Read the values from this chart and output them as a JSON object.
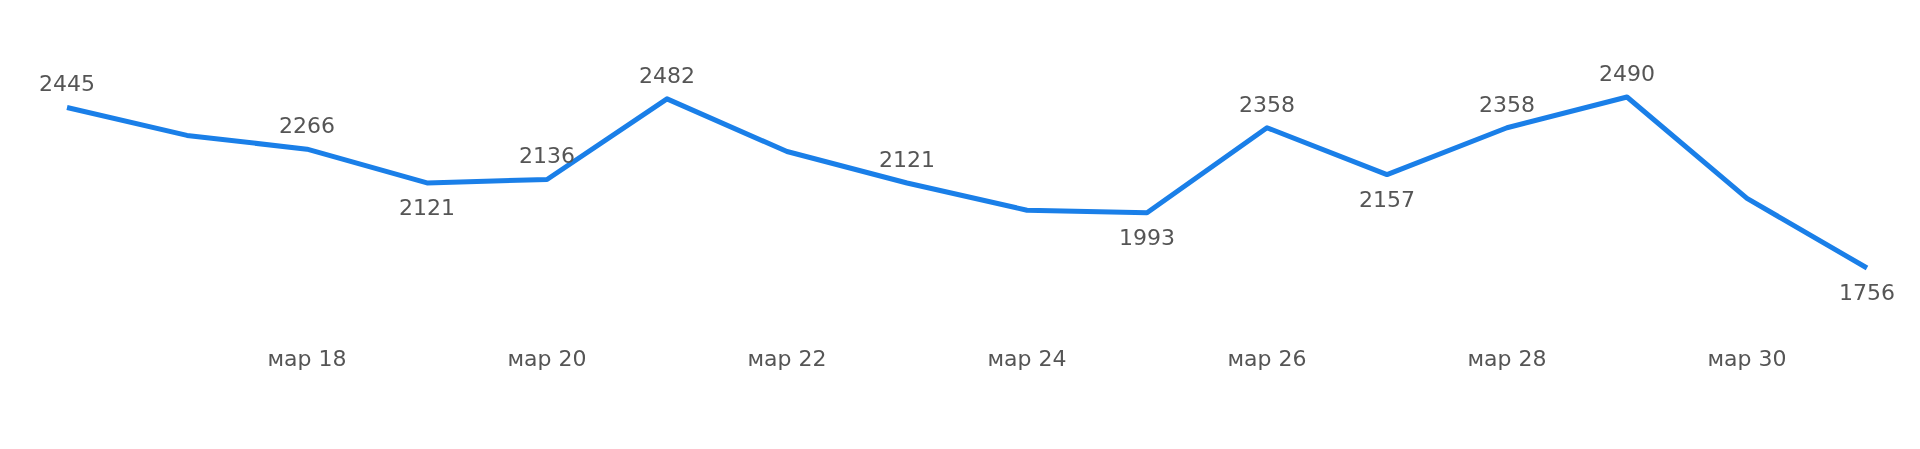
{
  "chart_data": {
    "type": "line",
    "categories": [
      null,
      null,
      "мар 18",
      null,
      "мар 20",
      null,
      "мар 22",
      null,
      "мар 24",
      null,
      "мар 26",
      null,
      "мар 28",
      null,
      "мар 30",
      null
    ],
    "series": [
      {
        "color": "#1a7fe8",
        "values": [
          2445,
          2325,
          2266,
          2121,
          2136,
          2482,
          2256,
          2121,
          2004,
          1993,
          2358,
          2157,
          2358,
          2490,
          2055,
          1756
        ],
        "value_labels": [
          "2445",
          null,
          "2266",
          "2121",
          "2136",
          "2482",
          null,
          "2121",
          null,
          "1993",
          "2358",
          "2157",
          "2358",
          "2490",
          null,
          "1756"
        ]
      }
    ],
    "marker": "none",
    "line_style": "solid"
  }
}
